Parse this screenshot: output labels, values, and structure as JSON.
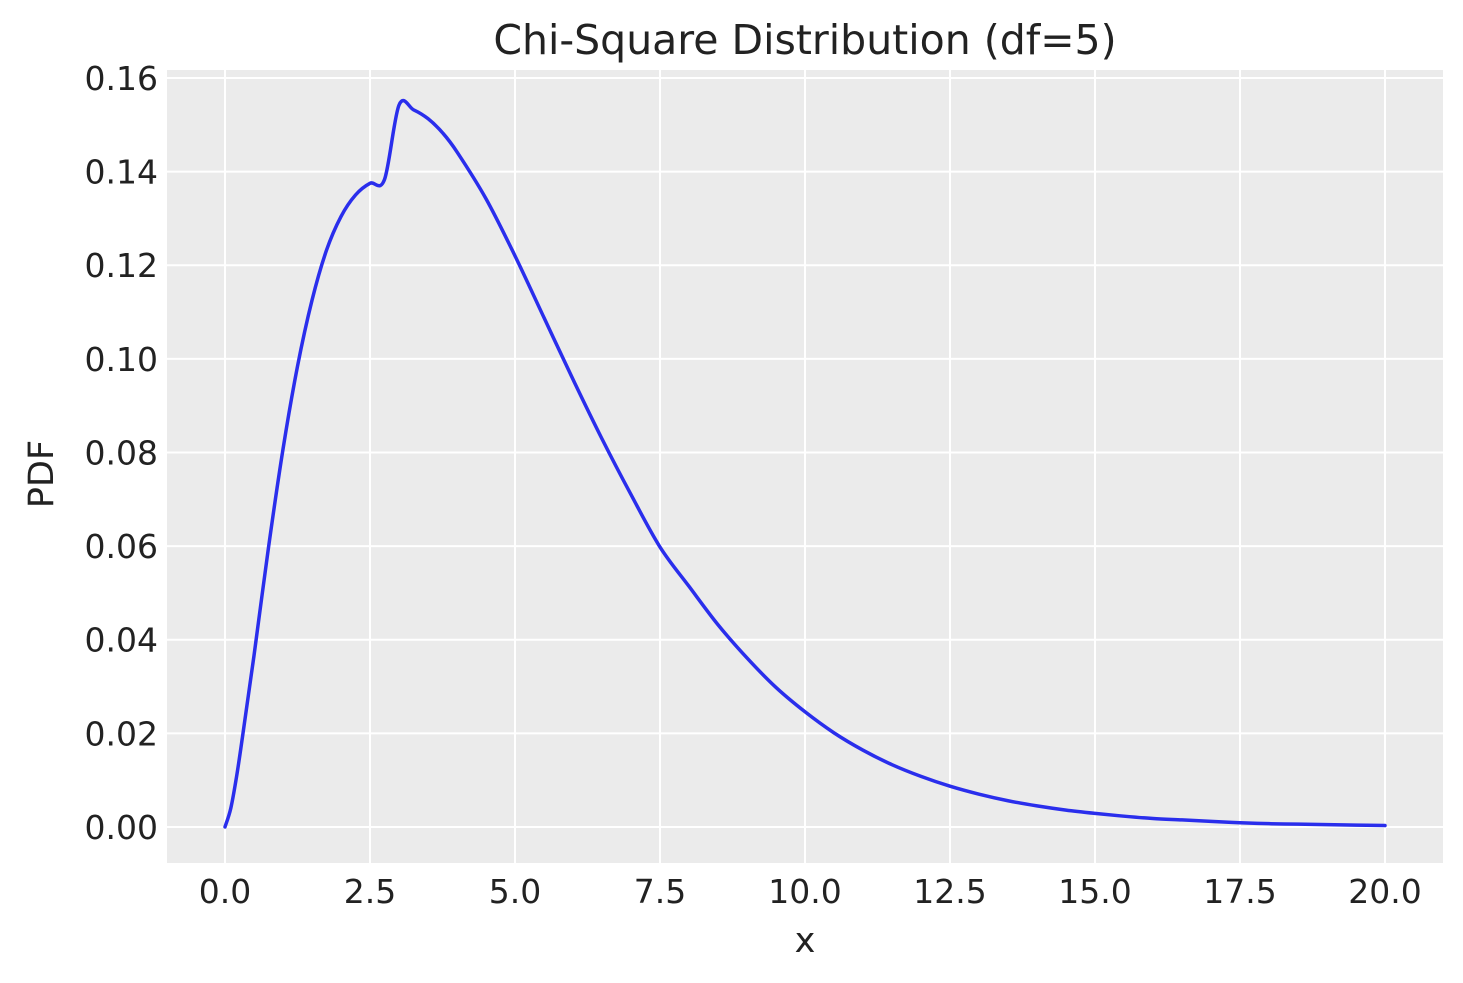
{
  "chart_data": {
    "type": "line",
    "title": "Chi-Square Distribution (df=5)",
    "xlabel": "x",
    "ylabel": "PDF",
    "xlim": [
      -1.0,
      21.0
    ],
    "ylim": [
      -0.0077,
      0.1617
    ],
    "x_ticks": [
      "0.0",
      "2.5",
      "5.0",
      "7.5",
      "10.0",
      "12.5",
      "15.0",
      "17.5",
      "20.0"
    ],
    "x_tick_values": [
      0,
      2.5,
      5,
      7.5,
      10,
      12.5,
      15,
      17.5,
      20
    ],
    "y_ticks": [
      "0.00",
      "0.02",
      "0.04",
      "0.06",
      "0.08",
      "0.10",
      "0.12",
      "0.14",
      "0.16"
    ],
    "y_tick_values": [
      0,
      0.02,
      0.04,
      0.06,
      0.08,
      0.1,
      0.12,
      0.14,
      0.16
    ],
    "grid": true,
    "colors": {
      "background": "#ebebeb",
      "grid": "#ffffff",
      "line": "#2a2eec"
    },
    "series": [
      {
        "x": [
          0,
          0.1,
          0.2,
          0.3,
          0.5,
          0.75,
          1.0,
          1.25,
          1.5,
          1.75,
          2.0,
          2.25,
          2.5,
          2.75,
          3.0,
          3.25,
          3.5,
          3.75,
          4.0,
          4.5,
          5.0,
          5.5,
          6.0,
          6.5,
          7.0,
          7.5,
          8.0,
          8.5,
          9.0,
          9.5,
          10.0,
          10.5,
          11.0,
          11.5,
          12.0,
          12.5,
          13.0,
          13.5,
          14.0,
          14.5,
          15.0,
          15.5,
          16.0,
          16.5,
          17.0,
          17.5,
          18.0,
          18.5,
          19.0,
          19.5,
          20.0
        ],
        "y": [
          0,
          0.004,
          0.0108,
          0.0191,
          0.0366,
          0.0597,
          0.0807,
          0.0984,
          0.1125,
          0.1232,
          0.1304,
          0.135,
          0.1375,
          0.1383,
          0.1542,
          0.1532,
          0.1513,
          0.1483,
          0.1442,
          0.1342,
          0.122,
          0.1088,
          0.0956,
          0.0829,
          0.071,
          0.0598,
          0.0514,
          0.0432,
          0.0361,
          0.0298,
          0.0246,
          0.0201,
          0.0164,
          0.0133,
          0.0108,
          0.0087,
          0.007,
          0.0056,
          0.0045,
          0.0036,
          0.0029,
          0.0023,
          0.0018,
          0.0015,
          0.0012,
          0.0009,
          0.0007,
          0.0006,
          0.0005,
          0.0004,
          0.0003
        ]
      }
    ]
  }
}
